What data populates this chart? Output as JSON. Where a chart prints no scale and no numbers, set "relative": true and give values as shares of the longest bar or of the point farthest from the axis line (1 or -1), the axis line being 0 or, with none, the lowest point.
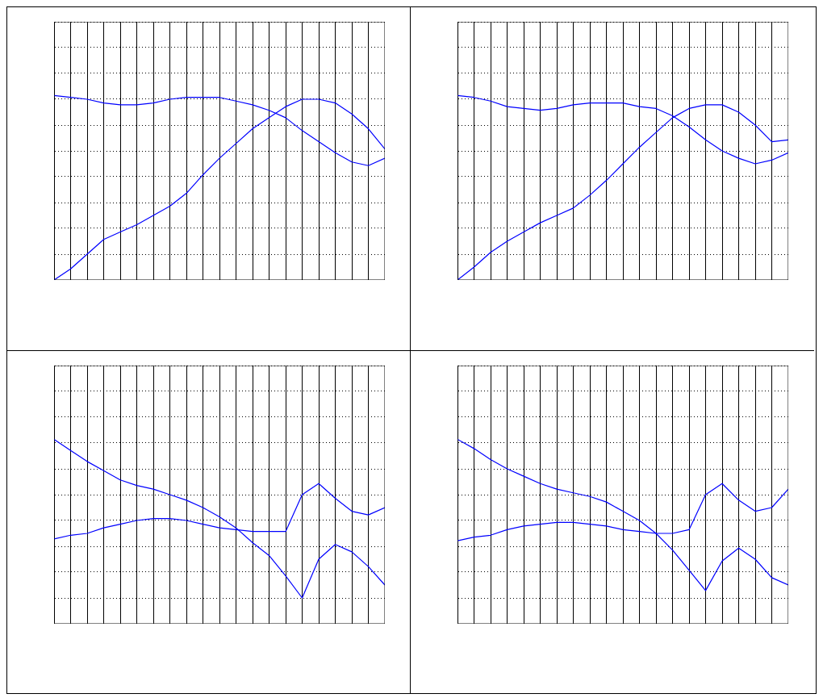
{
  "chart_data": [
    {
      "type": "line",
      "relative": true,
      "grid": true,
      "legend": false,
      "categories": [
        null,
        null,
        null,
        null,
        null,
        null,
        null,
        null,
        null,
        null,
        null,
        null,
        null,
        null,
        null,
        null,
        null,
        null,
        null,
        null,
        null
      ],
      "series": [
        {
          "color": "#0000ff",
          "values": [
            1,
            0.99,
            0.98,
            0.96,
            0.95,
            0.95,
            0.96,
            0.98,
            0.99,
            0.99,
            0.99,
            0.97,
            0.95,
            0.92,
            0.88,
            0.81,
            0.75,
            0.69,
            0.64,
            0.62,
            0.66
          ]
        },
        {
          "color": "#0000ff",
          "values": [
            0,
            0.06,
            0.14,
            0.22,
            0.26,
            0.3,
            0.35,
            0.4,
            0.47,
            0.57,
            0.66,
            0.74,
            0.82,
            0.88,
            0.94,
            0.98,
            0.98,
            0.96,
            0.9,
            0.82,
            0.71
          ]
        }
      ]
    },
    {
      "type": "line",
      "relative": true,
      "grid": true,
      "legend": false,
      "categories": [
        null,
        null,
        null,
        null,
        null,
        null,
        null,
        null,
        null,
        null,
        null,
        null,
        null,
        null,
        null,
        null,
        null,
        null,
        null,
        null,
        null
      ],
      "series": [
        {
          "color": "#0000ff",
          "values": [
            1,
            0.99,
            0.97,
            0.94,
            0.93,
            0.92,
            0.93,
            0.95,
            0.96,
            0.96,
            0.96,
            0.94,
            0.93,
            0.89,
            0.83,
            0.76,
            0.7,
            0.66,
            0.63,
            0.65,
            0.69
          ]
        },
        {
          "color": "#0000ff",
          "values": [
            0,
            0.07,
            0.15,
            0.21,
            0.26,
            0.31,
            0.35,
            0.39,
            0.46,
            0.54,
            0.63,
            0.72,
            0.8,
            0.88,
            0.93,
            0.95,
            0.95,
            0.91,
            0.84,
            0.75,
            0.76
          ]
        }
      ]
    },
    {
      "type": "line",
      "relative": true,
      "grid": true,
      "legend": false,
      "categories": [
        null,
        null,
        null,
        null,
        null,
        null,
        null,
        null,
        null,
        null,
        null,
        null,
        null,
        null,
        null,
        null,
        null,
        null,
        null,
        null,
        null
      ],
      "series": [
        {
          "color": "#0000ff",
          "values": [
            1,
            0.94,
            0.88,
            0.83,
            0.78,
            0.75,
            0.73,
            0.7,
            0.67,
            0.63,
            0.58,
            0.52,
            0.44,
            0.37,
            0.26,
            0.14,
            0.35,
            0.43,
            0.39,
            0.31,
            0.21
          ]
        },
        {
          "color": "#0000ff",
          "values": [
            0.46,
            0.48,
            0.49,
            0.52,
            0.54,
            0.56,
            0.57,
            0.57,
            0.56,
            0.54,
            0.52,
            0.51,
            0.5,
            0.5,
            0.5,
            0.7,
            0.76,
            0.68,
            0.61,
            0.59,
            0.63
          ]
        }
      ]
    },
    {
      "type": "line",
      "relative": true,
      "grid": true,
      "legend": false,
      "categories": [
        null,
        null,
        null,
        null,
        null,
        null,
        null,
        null,
        null,
        null,
        null,
        null,
        null,
        null,
        null,
        null,
        null,
        null,
        null,
        null,
        null
      ],
      "series": [
        {
          "color": "#0000ff",
          "values": [
            1,
            0.95,
            0.89,
            0.84,
            0.8,
            0.76,
            0.73,
            0.71,
            0.69,
            0.66,
            0.61,
            0.56,
            0.49,
            0.4,
            0.29,
            0.18,
            0.34,
            0.41,
            0.35,
            0.25,
            0.21
          ]
        },
        {
          "color": "#0000ff",
          "values": [
            0.45,
            0.47,
            0.48,
            0.51,
            0.53,
            0.54,
            0.55,
            0.55,
            0.54,
            0.53,
            0.51,
            0.5,
            0.49,
            0.49,
            0.51,
            0.7,
            0.76,
            0.67,
            0.61,
            0.63,
            0.73
          ]
        }
      ]
    }
  ]
}
